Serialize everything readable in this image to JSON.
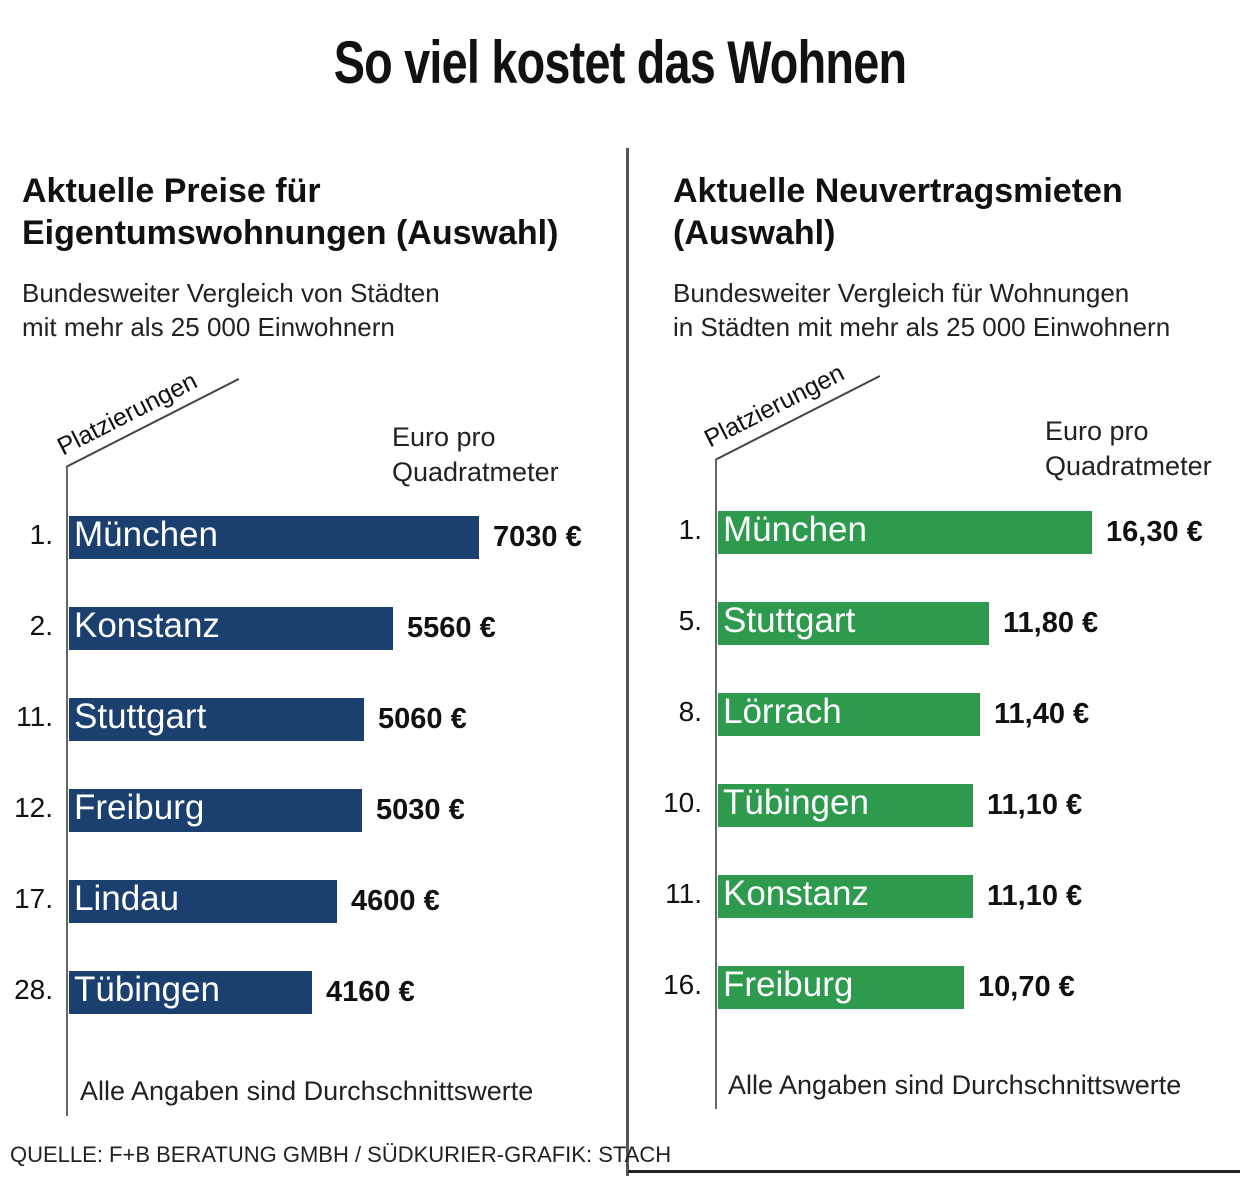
{
  "title": "So viel kostet das Wohnen",
  "source": "QUELLE: F+B BERATUNG GMBH / SÜDKURIER-GRAFIK: STACH",
  "colors": {
    "left_bar": "#1b3f6e",
    "right_bar": "#2e9a4e"
  },
  "left": {
    "title": "Aktuelle Preise für\nEigentumswohnungen (Auswahl)",
    "subtitle": "Bundesweiter Vergleich von Städten\nmit mehr als 25 000 Einwohnern",
    "rank_header": "Platzierungen",
    "unit": "Euro pro\nQuadratmeter",
    "note": "Alle Angaben sind Durchschnittswerte"
  },
  "right": {
    "title": "Aktuelle Neuvertragsmieten\n(Auswahl)",
    "subtitle": "Bundesweiter Vergleich für Wohnungen\nin Städten mit mehr als 25 000 Einwohnern",
    "rank_header": "Platzierungen",
    "unit": "Euro pro\nQuadratmeter",
    "note": "Alle Angaben sind Durchschnittswerte"
  },
  "chart_data": [
    {
      "type": "bar",
      "orientation": "horizontal",
      "title": "Aktuelle Preise für Eigentumswohnungen (Auswahl)",
      "unit": "Euro pro Quadratmeter",
      "ranks": [
        "1.",
        "2.",
        "11.",
        "12.",
        "17.",
        "28."
      ],
      "categories": [
        "München",
        "Konstanz",
        "Stuttgart",
        "Freiburg",
        "Lindau",
        "Tübingen"
      ],
      "values": [
        7030,
        5560,
        5060,
        5030,
        4600,
        4160
      ],
      "labels": [
        "7030 €",
        "5560 €",
        "5060 €",
        "5030 €",
        "4600 €",
        "4160 €"
      ]
    },
    {
      "type": "bar",
      "orientation": "horizontal",
      "title": "Aktuelle Neuvertragsmieten (Auswahl)",
      "unit": "Euro pro Quadratmeter",
      "ranks": [
        "1.",
        "5.",
        "8.",
        "10.",
        "11.",
        "16."
      ],
      "categories": [
        "München",
        "Stuttgart",
        "Lörrach",
        "Tübingen",
        "Konstanz",
        "Freiburg"
      ],
      "values": [
        16.3,
        11.8,
        11.4,
        11.1,
        11.1,
        10.7
      ],
      "labels": [
        "16,30 €",
        "11,80 €",
        "11,40 €",
        "11,10 €",
        "11,10 €",
        "10,70 €"
      ]
    }
  ]
}
